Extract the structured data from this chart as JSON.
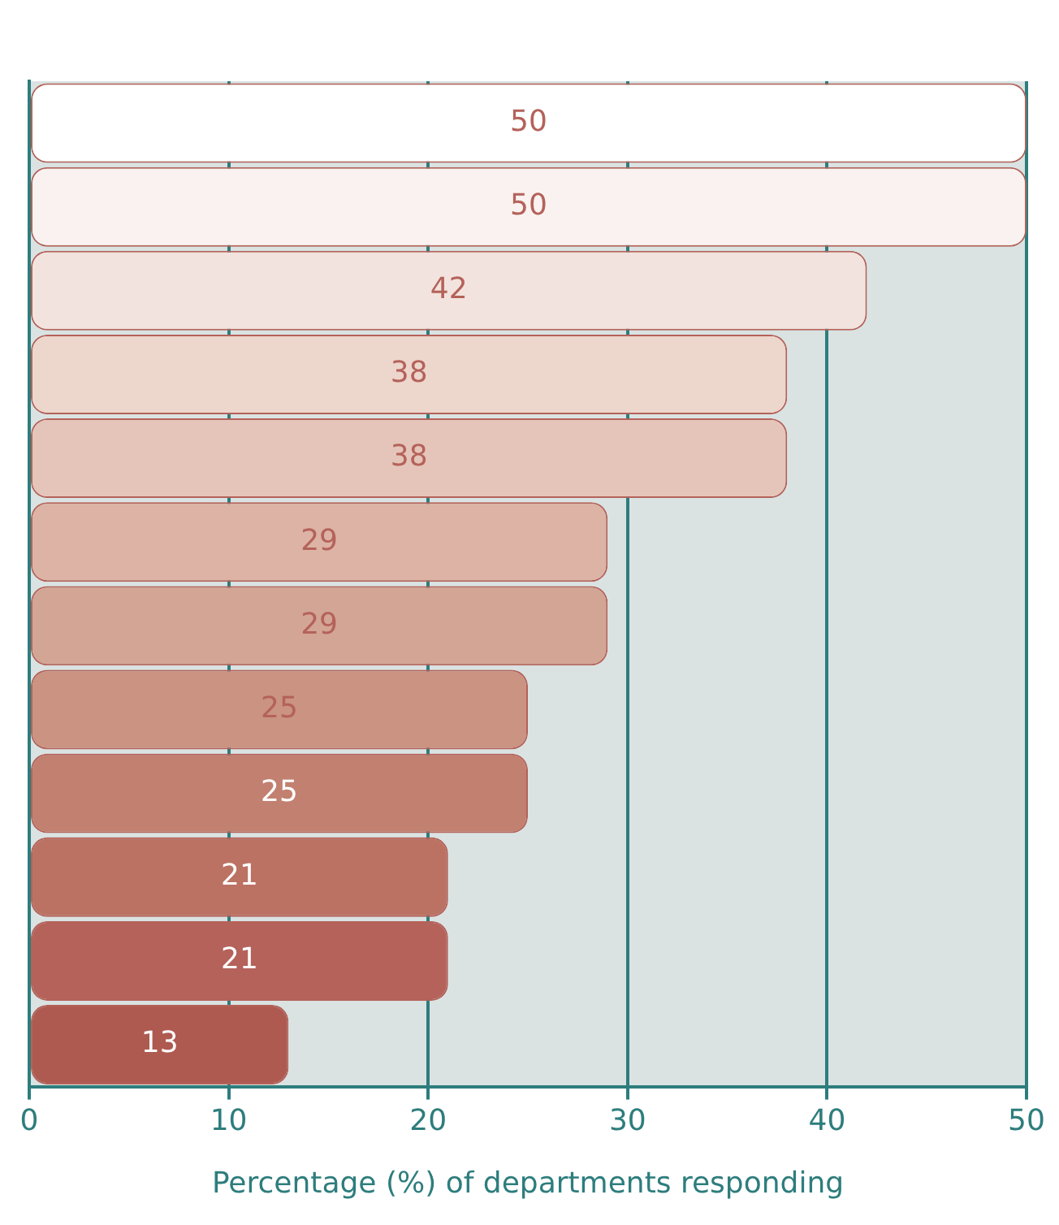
{
  "chart_data": {
    "type": "bar",
    "orientation": "horizontal",
    "xlabel": "Percentage (%) of departments responding",
    "categories": [
      null,
      null,
      null,
      null,
      null,
      null,
      null,
      null,
      null,
      null,
      null,
      null
    ],
    "values": [
      50,
      50,
      42,
      38,
      38,
      29,
      29,
      25,
      25,
      21,
      21,
      13
    ],
    "colors": [
      "#ffffff",
      "#faf2f0",
      "#f3e3de",
      "#edd6cc",
      "#e5c5b9",
      "#dcb3a5",
      "#d3a594",
      "#ca9382",
      "#c28070",
      "#bb7262",
      "#b4625a",
      "#ae5a50"
    ],
    "xlim": [
      0,
      50
    ],
    "xticks": [
      0,
      10,
      20,
      30,
      40,
      50
    ],
    "grid": "x",
    "data_labels": true,
    "legend": false
  }
}
